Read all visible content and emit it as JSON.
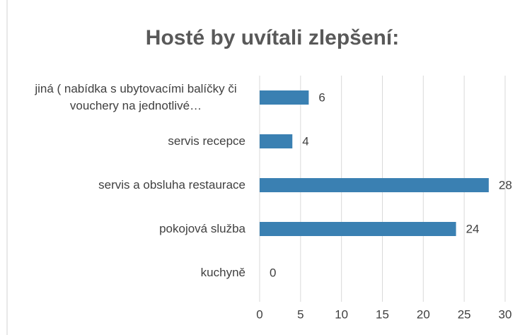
{
  "chart_data": {
    "type": "bar",
    "orientation": "horizontal",
    "title": "Hosté by uvítali zlepšení:",
    "categories": [
      "jiná ( nabídka s ubytovacími balíčky či vouchery na jednotlivé…",
      "servis recepce",
      "servis a obsluha restaurace",
      "pokojová služba",
      "kuchyně"
    ],
    "values": [
      6,
      4,
      28,
      24,
      0
    ],
    "color": "#3a80b2",
    "xlim": [
      0,
      30
    ],
    "xticks": [
      0,
      5,
      10,
      15,
      20,
      25,
      30
    ],
    "grid": true
  }
}
